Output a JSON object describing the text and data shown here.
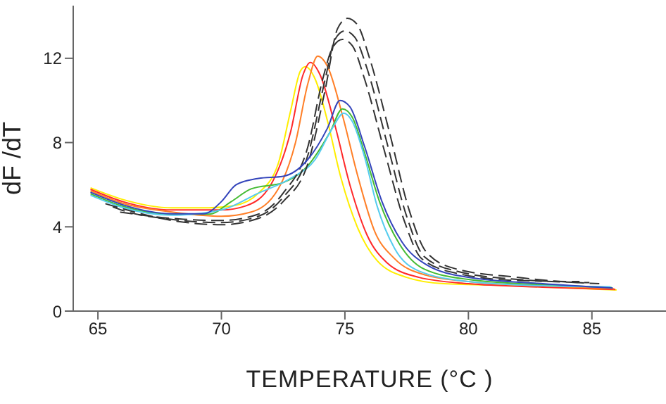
{
  "chart_data": {
    "type": "line",
    "xlabel": "TEMPERATURE   (°C )",
    "ylabel": "dF /dT",
    "xlim": [
      64,
      88
    ],
    "ylim": [
      0,
      14.5
    ],
    "xticks": [
      65,
      70,
      75,
      80,
      85
    ],
    "yticks": [
      0,
      4,
      8,
      12
    ],
    "grid": false,
    "legend": false,
    "marker": "none",
    "series": [
      {
        "color": "#ffee00",
        "line_style": "solid",
        "x": [
          64.7,
          66,
          68,
          69.5,
          70.5,
          71.5,
          72.3,
          72.8,
          73.2,
          73.4,
          73.8,
          74.3,
          74.8,
          75.5,
          76.3,
          77.5,
          79,
          82,
          86
        ],
        "values": [
          5.85,
          5.3,
          4.9,
          4.9,
          5.0,
          5.6,
          7.0,
          9.5,
          11.4,
          11.6,
          11.0,
          9.0,
          6.5,
          4.0,
          2.4,
          1.6,
          1.3,
          1.2,
          1.0
        ]
      },
      {
        "color": "#ff2a2a",
        "line_style": "solid",
        "x": [
          64.7,
          66,
          68,
          70,
          71,
          72,
          72.8,
          73.3,
          73.6,
          74,
          74.6,
          75.2,
          75.9,
          76.7,
          78,
          80,
          83,
          85.95
        ],
        "values": [
          5.78,
          5.2,
          4.8,
          4.8,
          5.0,
          6.0,
          8.5,
          11.2,
          11.8,
          11.2,
          8.8,
          6.0,
          3.6,
          2.3,
          1.6,
          1.3,
          1.14,
          1.03
        ]
      },
      {
        "color": "#ff7f27",
        "line_style": "solid",
        "x": [
          64.7,
          66,
          68,
          70,
          71.2,
          72.3,
          73,
          73.5,
          73.9,
          74.3,
          74.9,
          75.5,
          76.2,
          77,
          78.3,
          80,
          83,
          85.9
        ],
        "values": [
          5.71,
          5.12,
          4.7,
          4.5,
          4.7,
          5.8,
          8.0,
          10.8,
          12.1,
          11.6,
          9.3,
          6.5,
          3.8,
          2.5,
          1.7,
          1.4,
          1.2,
          1.06
        ]
      },
      {
        "color": "#44bb33",
        "line_style": "solid",
        "x": [
          64.7,
          66,
          68,
          69.5,
          70.4,
          71.2,
          72.5,
          73.5,
          74.4,
          74.9,
          75.3,
          75.8,
          76.4,
          77.2,
          78.2,
          80,
          83,
          85.8
        ],
        "values": [
          5.57,
          4.98,
          4.6,
          4.6,
          5.2,
          5.8,
          6.1,
          6.9,
          8.5,
          9.6,
          9.2,
          7.5,
          5.2,
          3.2,
          2.0,
          1.5,
          1.25,
          1.12
        ]
      },
      {
        "color": "#55ccee",
        "line_style": "solid",
        "x": [
          64.7,
          66,
          68,
          70,
          71.5,
          72.8,
          73.8,
          74.5,
          74.95,
          75.3,
          75.8,
          76.3,
          77,
          78,
          80,
          83,
          85.75
        ],
        "values": [
          5.5,
          4.92,
          4.55,
          4.8,
          5.6,
          6.3,
          7.2,
          8.7,
          9.4,
          9.0,
          7.3,
          5.0,
          3.0,
          1.9,
          1.4,
          1.2,
          1.15
        ]
      },
      {
        "color": "#333333",
        "line_style": "dashed",
        "x": [
          65.3,
          66,
          68,
          70,
          71.5,
          72.5,
          73.5,
          74.2,
          74.7,
          75.1,
          75.5,
          76,
          76.8,
          77.6,
          78.3,
          79.5,
          82,
          84,
          85.3
        ],
        "values": [
          5.1,
          4.86,
          4.3,
          4.1,
          4.4,
          5.2,
          7.0,
          10.5,
          13.4,
          13.9,
          13.6,
          12.0,
          8.5,
          4.8,
          2.8,
          2.0,
          1.6,
          1.38,
          1.3
        ]
      },
      {
        "color": "#333333",
        "line_style": "dashed",
        "x": [
          65.6,
          66,
          68,
          70,
          71.5,
          72.5,
          73.5,
          74.2,
          74.6,
          75.0,
          75.4,
          75.9,
          76.7,
          77.5,
          78.2,
          79.5,
          82,
          84.9
        ],
        "values": [
          4.95,
          4.78,
          4.35,
          4.2,
          4.5,
          5.4,
          7.4,
          11.0,
          12.9,
          13.3,
          13.0,
          11.5,
          8.0,
          4.5,
          2.6,
          1.9,
          1.5,
          1.35
        ]
      },
      {
        "color": "#333333",
        "line_style": "dashed",
        "x": [
          65.9,
          68,
          70,
          71.5,
          72.5,
          73.5,
          74.1,
          74.5,
          74.9,
          75.3,
          75.8,
          76.6,
          77.4,
          78.1,
          79.5,
          82,
          84.5
        ],
        "values": [
          4.7,
          4.4,
          4.3,
          4.6,
          5.6,
          7.8,
          11.0,
          12.5,
          12.9,
          12.6,
          11.0,
          7.6,
          4.3,
          2.5,
          1.8,
          1.45,
          1.4
        ]
      },
      {
        "color": "#3344bb",
        "line_style": "solid",
        "x": [
          64.7,
          66,
          68,
          69.3,
          70,
          70.6,
          71.5,
          72.5,
          73.5,
          74.3,
          74.8,
          75.2,
          75.8,
          76.5,
          77.3,
          78.3,
          80,
          83,
          85.85
        ],
        "values": [
          5.64,
          5.05,
          4.62,
          4.62,
          5.2,
          6.0,
          6.3,
          6.4,
          7.2,
          8.7,
          10.0,
          9.7,
          7.8,
          5.2,
          3.3,
          2.2,
          1.6,
          1.3,
          1.09
        ]
      }
    ]
  }
}
